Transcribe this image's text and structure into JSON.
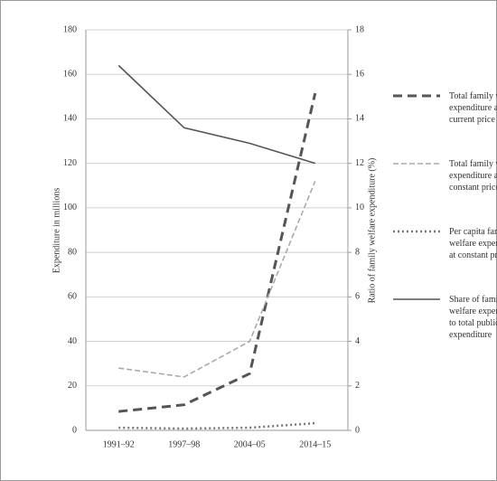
{
  "chart_data": {
    "type": "line",
    "categories": [
      "1991–92",
      "1997–98",
      "2004–05",
      "2014–15"
    ],
    "y_label": "Expenditure in millions",
    "y2_label": "Ratio of family welfare expenditure (%)",
    "ylim": [
      0,
      180
    ],
    "yticks": [
      0,
      20,
      40,
      60,
      80,
      100,
      120,
      140,
      160,
      180
    ],
    "y2lim": [
      0,
      18
    ],
    "y2ticks": [
      0,
      2,
      4,
      6,
      8,
      10,
      12,
      14,
      16,
      18
    ],
    "grid": true,
    "legend": "right",
    "series": [
      {
        "name": "Total family welfare expenditure at current price",
        "color": "#555555",
        "dash": "10,6",
        "width": 3,
        "values": [
          8.5,
          11.5,
          25.5,
          151.5
        ]
      },
      {
        "name": "Total family welfare expenditure at constant price",
        "color": "#aaaaaa",
        "dash": "6,3",
        "width": 1.6,
        "values": [
          28,
          24,
          40,
          112
        ]
      },
      {
        "name": "Per capita family welfare expenditure at constant price",
        "color": "#777777",
        "dash": "2,3",
        "width": 2.5,
        "values": [
          1.2,
          0.8,
          1.2,
          3.2
        ]
      },
      {
        "name": "Share of family welfare expenditure to total public health expenditure",
        "color": "#555555",
        "dash": "",
        "width": 1.6,
        "axis": "y2",
        "values": [
          16.4,
          13.6,
          12.9,
          12.0
        ]
      }
    ]
  }
}
